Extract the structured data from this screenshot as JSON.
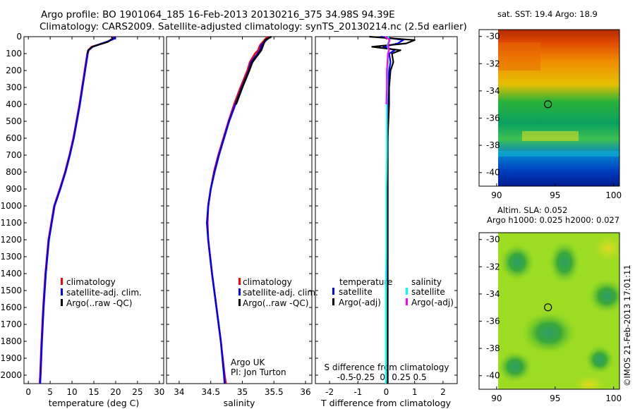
{
  "header": {
    "line1": "Argo profile: BO 1901064_185 16-Feb-2013 20130216_375 34.98S 94.39E",
    "line2": "Climatology: CARS2009. Satellite-adjusted climatology: synTS_20130214.nc (2.5d earlier)"
  },
  "colors": {
    "climatology": "#ff0000",
    "satellite": "#0000ff",
    "argo": "#000000",
    "sal_satellite": "#00ffff",
    "sal_argo": "#ff00ff"
  },
  "chart_data": [
    {
      "type": "line",
      "id": "temperature",
      "xlabel": "temperature (deg C)",
      "xlim": [
        -1,
        31
      ],
      "ylim": [
        0,
        2050
      ],
      "x_ticks": [
        "0",
        "5",
        "10",
        "15",
        "20",
        "25",
        "30"
      ],
      "x_tick_values": [
        0,
        5,
        10,
        15,
        20,
        25,
        30
      ],
      "y_ticks": [
        "0",
        "100",
        "200",
        "300",
        "400",
        "500",
        "600",
        "700",
        "800",
        "900",
        "1000",
        "1100",
        "1200",
        "1300",
        "1400",
        "1500",
        "1600",
        "1700",
        "1800",
        "1900",
        "2000"
      ],
      "y_tick_values": [
        0,
        100,
        200,
        300,
        400,
        500,
        600,
        700,
        800,
        900,
        1000,
        1100,
        1200,
        1300,
        1400,
        1500,
        1600,
        1700,
        1800,
        1900,
        2000
      ],
      "legend": [
        "climatology",
        "satellite-adj. clim.",
        "Argo(..raw -QC)"
      ],
      "series": [
        {
          "name": "climatology",
          "color": "#ff0000",
          "depth": [
            0,
            10,
            30,
            60,
            80,
            100,
            200,
            300,
            400,
            500,
            600,
            700,
            800,
            900,
            1000,
            1200,
            1400,
            1600,
            1800,
            2000,
            2050
          ],
          "values": [
            19.2,
            19.4,
            18.2,
            14.5,
            13.7,
            13.5,
            12.9,
            12.3,
            11.7,
            11.0,
            10.3,
            9.4,
            8.4,
            7.2,
            5.9,
            4.6,
            3.9,
            3.4,
            3.0,
            2.7,
            2.6
          ]
        },
        {
          "name": "satellite-adj. clim.",
          "color": "#0000ff",
          "depth": [
            0,
            10,
            30,
            60,
            80,
            100,
            200,
            300,
            400,
            500,
            600,
            700,
            800,
            900,
            1000,
            1200,
            1400,
            1600,
            1800,
            2000,
            2050
          ],
          "values": [
            19.6,
            19.8,
            18.0,
            14.7,
            13.8,
            13.6,
            13.0,
            12.4,
            11.8,
            11.1,
            10.4,
            9.5,
            8.5,
            7.3,
            6.0,
            4.7,
            4.0,
            3.5,
            3.1,
            2.8,
            2.7
          ]
        }
      ]
    },
    {
      "type": "line",
      "id": "salinity",
      "xlabel": "salinity",
      "xlim": [
        33.8,
        36.1
      ],
      "ylim": [
        0,
        2050
      ],
      "x_ticks": [
        "34",
        "34.5",
        "35",
        "35.5",
        "36"
      ],
      "x_tick_values": [
        34,
        34.5,
        35,
        35.5,
        36
      ],
      "legend": [
        "climatology",
        "satellite-adj. clim.",
        "Argo(..raw -QC)"
      ],
      "annotation": [
        "Argo UK",
        "PI: Jon Turton"
      ],
      "series": [
        {
          "name": "climatology",
          "color": "#ff0000",
          "depth": [
            0,
            20,
            50,
            80,
            100,
            150,
            200,
            300,
            400,
            500,
            600,
            700,
            800,
            900,
            1000,
            1100,
            1200,
            1400,
            1600,
            1800,
            2000,
            2050
          ],
          "values": [
            35.4,
            35.35,
            35.28,
            35.25,
            35.2,
            35.12,
            35.08,
            34.97,
            34.87,
            34.78,
            34.7,
            34.62,
            34.55,
            34.5,
            34.46,
            34.45,
            34.46,
            34.52,
            34.59,
            34.66,
            34.72,
            34.74
          ]
        },
        {
          "name": "satellite-adj. clim.",
          "color": "#0000ff",
          "depth": [
            0,
            20,
            50,
            80,
            100,
            150,
            200,
            300,
            400,
            500,
            600,
            700,
            800,
            900,
            1000,
            1100,
            1200,
            1400,
            1600,
            1800,
            2000,
            2050
          ],
          "values": [
            35.44,
            35.38,
            35.3,
            35.28,
            35.24,
            35.14,
            35.1,
            34.99,
            34.89,
            34.79,
            34.71,
            34.63,
            34.56,
            34.5,
            34.46,
            34.44,
            34.46,
            34.52,
            34.59,
            34.66,
            34.71,
            34.72
          ]
        },
        {
          "name": "Argo(..raw -QC)",
          "color": "#000000",
          "depth": [
            0,
            20,
            50,
            80,
            100,
            150,
            200,
            300,
            400
          ],
          "values": [
            35.46,
            35.36,
            35.33,
            35.3,
            35.26,
            35.16,
            35.11,
            35.0,
            34.9
          ]
        }
      ]
    },
    {
      "type": "line",
      "id": "difference",
      "xlabel": "T difference from climatology",
      "xlabel_top": "S difference from climatology",
      "xlim": [
        -2.5,
        2.5
      ],
      "ylim": [
        0,
        2050
      ],
      "x_ticks": [
        "-2",
        "-1",
        "0",
        "1",
        "2"
      ],
      "x_tick_values": [
        -2,
        -1,
        0,
        1,
        2
      ],
      "s_ticks": [
        "-0.5",
        "-0.25",
        "0",
        "0.25",
        "0.5"
      ],
      "s_tick_values": [
        -0.5,
        -0.25,
        0,
        0.25,
        0.5
      ],
      "legend_temperature": {
        "title": "temperature",
        "items": [
          "satellite",
          "Argo(-adj)"
        ]
      },
      "legend_salinity": {
        "title": "salinity",
        "items": [
          "satellite",
          "Argo(-adj)"
        ]
      },
      "series": [
        {
          "name": "T satellite",
          "color": "#0000ff",
          "depth": [
            0,
            20,
            40,
            60,
            80,
            100,
            150,
            200,
            300,
            400,
            600,
            800,
            1000,
            1200,
            1500,
            1800,
            2050
          ],
          "values": [
            -0.2,
            0.6,
            0.4,
            -0.1,
            0.3,
            0.1,
            0.15,
            0.1,
            0.05,
            0.05,
            0.05,
            0.05,
            0.05,
            0.05,
            0.05,
            0.05,
            0.05
          ]
        },
        {
          "name": "T Argo(-adj)",
          "color": "#000000",
          "depth": [
            0,
            20,
            40,
            60,
            80,
            100,
            150,
            200,
            300,
            400,
            600,
            800,
            1000,
            1200,
            1500,
            1800,
            2050
          ],
          "values": [
            -0.6,
            1.0,
            0.7,
            -0.5,
            0.5,
            0.2,
            0.25,
            0.15,
            0.1,
            0.1,
            0.05,
            0.05,
            0.05,
            0.05,
            0.05,
            0.05,
            0.05
          ]
        },
        {
          "name": "S satellite",
          "color": "#00ffff",
          "depth": [
            0,
            20,
            50,
            80,
            100,
            150,
            200,
            300,
            400,
            500,
            700,
            900,
            1100,
            1300,
            1500,
            1700,
            1900,
            2050
          ],
          "values": [
            0.03,
            0.05,
            0.02,
            0.04,
            0.03,
            0.03,
            0.02,
            0.02,
            0.01,
            0.01,
            0.01,
            0.0,
            0.0,
            0.0,
            -0.01,
            -0.01,
            -0.01,
            -0.01
          ]
        },
        {
          "name": "S Argo(-adj)",
          "color": "#ff00ff",
          "depth": [
            0,
            20,
            50,
            80,
            100,
            150,
            200,
            300,
            400
          ],
          "values": [
            -0.02,
            0.06,
            0.03,
            0.05,
            0.03,
            0.02,
            0.01,
            0.01,
            0.0
          ]
        }
      ]
    },
    {
      "type": "heatmap",
      "id": "sst-map",
      "title": "sat. SST: 19.4  Argo: 18.9",
      "xlim": [
        88.5,
        100.5
      ],
      "ylim": [
        -41,
        -29.5
      ],
      "x_ticks": [
        "90",
        "95",
        "100"
      ],
      "x_tick_values": [
        90,
        95,
        100
      ],
      "y_ticks": [
        "-30",
        "-32",
        "-34",
        "-36",
        "-38",
        "-40"
      ],
      "y_tick_values": [
        -30,
        -32,
        -34,
        -36,
        -38,
        -40
      ],
      "marker": {
        "lon": 94.39,
        "lat": -34.98
      }
    },
    {
      "type": "heatmap",
      "id": "sla-map",
      "title_line1": "Altim. SLA: 0.052",
      "title_line2": "Argo h1000: 0.025 h2000: 0.027",
      "xlim": [
        88.5,
        100.5
      ],
      "ylim": [
        -41,
        -29.5
      ],
      "x_ticks": [
        "90",
        "95",
        "100"
      ],
      "x_tick_values": [
        90,
        95,
        100
      ],
      "y_ticks": [
        "-30",
        "-32",
        "-34",
        "-36",
        "-38",
        "-40"
      ],
      "y_tick_values": [
        -30,
        -32,
        -34,
        -36,
        -38,
        -40
      ],
      "marker": {
        "lon": 94.39,
        "lat": -34.98
      }
    }
  ],
  "footer": {
    "stamp": "©IMOS 21-Feb-2013 17:01:11"
  }
}
